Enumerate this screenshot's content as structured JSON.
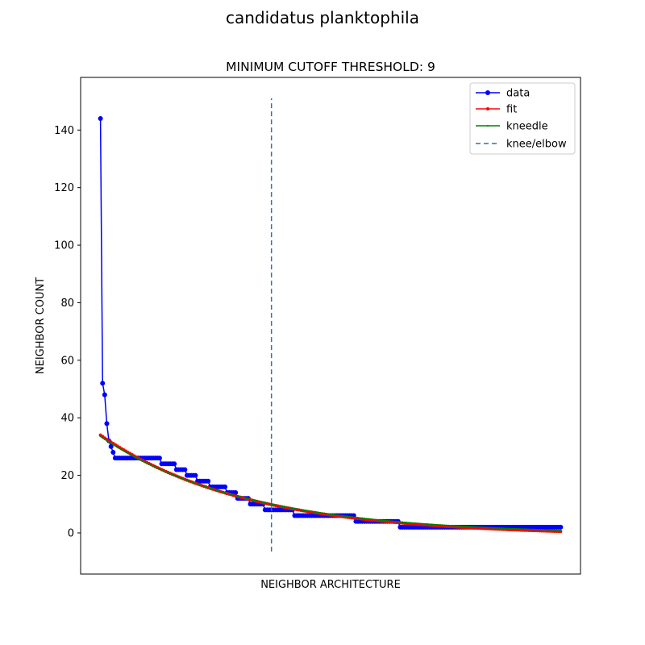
{
  "figure": {
    "suptitle": "candidatus planktophila"
  },
  "chart_data": {
    "type": "line",
    "title": "MINIMUM CUTOFF THRESHOLD: 9",
    "xlabel": "NEIGHBOR ARCHITECTURE",
    "ylabel": "NEIGHBOR COUNT",
    "xlim": [
      -9.4,
      227.4
    ],
    "ylim": [
      -14.3,
      158.3
    ],
    "yticks": [
      0,
      20,
      40,
      60,
      80,
      100,
      120,
      140
    ],
    "x_tick_labels_shown": false,
    "grid": false,
    "legend_position": "top-right",
    "colors": {
      "data": "#0000ff",
      "fit": "#ff0000",
      "kneedle": "#008000",
      "knee": "#1f77b4"
    },
    "series": [
      {
        "name": "data",
        "color": "#0000ff",
        "marker": "circle",
        "segments": [
          {
            "x_start": 0,
            "x_end": 0,
            "value": 144
          },
          {
            "x_start": 1,
            "x_end": 1,
            "value": 52
          },
          {
            "x_start": 2,
            "x_end": 2,
            "value": 48
          },
          {
            "x_start": 3,
            "x_end": 3,
            "value": 38
          },
          {
            "x_start": 4,
            "x_end": 4,
            "value": 32
          },
          {
            "x_start": 5,
            "x_end": 5,
            "value": 30
          },
          {
            "x_start": 6,
            "x_end": 6,
            "value": 28
          },
          {
            "x_start": 7,
            "x_end": 28,
            "value": 26
          },
          {
            "x_start": 29,
            "x_end": 35,
            "value": 24
          },
          {
            "x_start": 36,
            "x_end": 40,
            "value": 22
          },
          {
            "x_start": 41,
            "x_end": 45,
            "value": 20
          },
          {
            "x_start": 46,
            "x_end": 51,
            "value": 18
          },
          {
            "x_start": 52,
            "x_end": 59,
            "value": 16
          },
          {
            "x_start": 60,
            "x_end": 64,
            "value": 14
          },
          {
            "x_start": 65,
            "x_end": 70,
            "value": 12
          },
          {
            "x_start": 71,
            "x_end": 77,
            "value": 10
          },
          {
            "x_start": 78,
            "x_end": 91,
            "value": 8
          },
          {
            "x_start": 92,
            "x_end": 120,
            "value": 6
          },
          {
            "x_start": 121,
            "x_end": 141,
            "value": 4
          },
          {
            "x_start": 142,
            "x_end": 218,
            "value": 2
          }
        ]
      },
      {
        "name": "fit",
        "color": "#ff0000",
        "marker": "circle-small",
        "y_start": 34,
        "y_end": 0.5,
        "decay": 0.0145,
        "offset": -1
      },
      {
        "name": "kneedle",
        "color": "#008000",
        "marker": "point",
        "y_start": 33.5,
        "y_end": 0.9,
        "decay": 0.0145,
        "offset": -1
      }
    ],
    "vertical_line": {
      "name": "knee/elbow",
      "x": 81,
      "y_min": -6.5,
      "y_max": 151,
      "style": "dashed",
      "color": "#1f77b4"
    },
    "legend": [
      "data",
      "fit",
      "kneedle",
      "knee/elbow"
    ]
  }
}
